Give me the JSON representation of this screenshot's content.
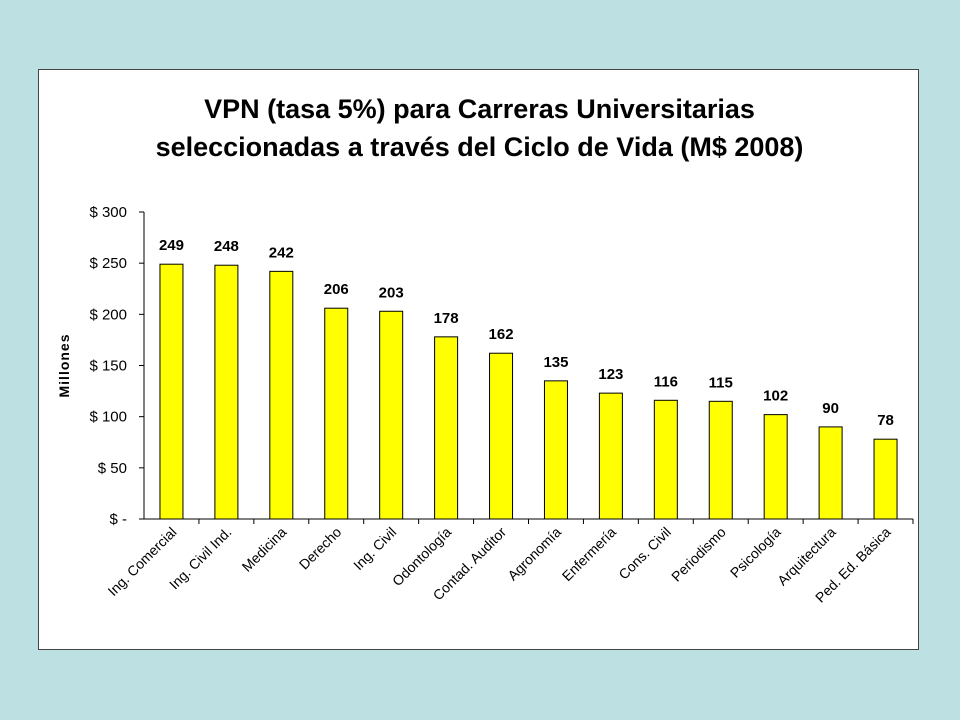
{
  "colors": {
    "background": "#bde0e2",
    "panel": "#ffffff",
    "bar": "#ffff00",
    "bar_border": "#000000"
  },
  "chart_data": {
    "type": "bar",
    "title": "VPN (tasa 5%) para Carreras Universitarias\nseleccionadas a través del Ciclo de Vida (M$ 2008)",
    "ylabel": "Millones",
    "xlabel": "",
    "ylim": [
      0,
      300
    ],
    "yticks": [
      0,
      50,
      100,
      150,
      200,
      250,
      300
    ],
    "ytick_labels": [
      "$ -",
      "$ 50",
      "$ 100",
      "$ 150",
      "$ 200",
      "$ 250",
      "$ 300"
    ],
    "categories": [
      "Ing. Comercial",
      "Ing. Civil Ind.",
      "Medicina",
      "Derecho",
      "Ing. Civil",
      "Odontología",
      "Contad. Auditor",
      "Agronomía",
      "Enfermería",
      "Cons. Civil",
      "Periodismo",
      "Psicología",
      "Arquitectura",
      "Ped. Ed. Básica"
    ],
    "values": [
      249,
      248,
      242,
      206,
      203,
      178,
      162,
      135,
      123,
      116,
      115,
      102,
      90,
      78
    ],
    "data_labels": true,
    "grid": false,
    "legend": "none"
  }
}
